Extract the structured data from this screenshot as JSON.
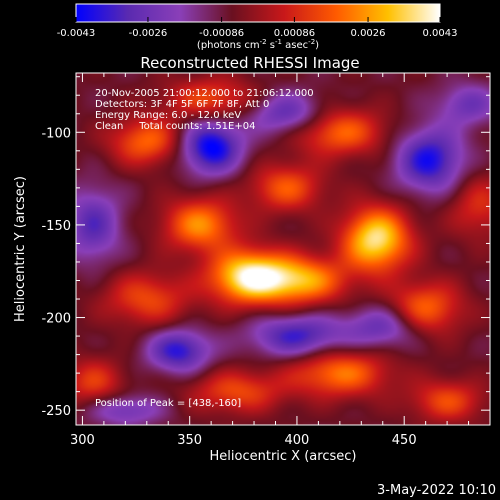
{
  "chart_data": {
    "type": "heatmap",
    "title": "Reconstructed RHESSI Image",
    "xlabel": "Heliocentric X (arcsec)",
    "ylabel": "Heliocentric Y (arcsec)",
    "xlim": [
      297,
      490
    ],
    "ylim": [
      -258,
      -68
    ],
    "x_ticks": [
      300,
      350,
      400,
      450
    ],
    "y_ticks": [
      -100,
      -150,
      -200,
      -250
    ],
    "colorbar": {
      "min": -0.0043,
      "max": 0.0043,
      "ticks": [
        "-0.0043",
        "-0.0026",
        "-0.00086",
        "0.00086",
        "0.0026",
        "0.0043"
      ],
      "tick_values": [
        -0.0043,
        -0.0026,
        -0.00086,
        0.00086,
        0.0026,
        0.0043
      ],
      "unit_label": "(photons cm-2 s-1 asec-2)",
      "colormap": [
        "#0000ff",
        "#5a2ab0",
        "#8a3fb8",
        "#6a1020",
        "#c8181a",
        "#ff5a00",
        "#ffc000",
        "#ffffff"
      ]
    },
    "annotations": [
      "20-Nov-2005 21:00:12.000 to 21:06:12.000",
      "Detectors: 3F 4F 5F 6F 7F 8F, Att 0",
      "Energy Range: 6.0 - 12.0 keV",
      "Clean     Total counts: 1.51E+04"
    ],
    "peak_label": "Position of Peak = [438,-160]",
    "peak": [
      438,
      -160
    ],
    "blobs": [
      {
        "x": 378,
        "y": -178,
        "amp": 1.0,
        "sx": 13,
        "sy": 10
      },
      {
        "x": 437,
        "y": -158,
        "amp": 0.95,
        "sx": 11,
        "sy": 12
      },
      {
        "x": 355,
        "y": -150,
        "amp": 0.65,
        "sx": 12,
        "sy": 10
      },
      {
        "x": 403,
        "y": -180,
        "amp": 0.7,
        "sx": 14,
        "sy": 9
      },
      {
        "x": 330,
        "y": -105,
        "amp": 0.55,
        "sx": 12,
        "sy": 9
      },
      {
        "x": 420,
        "y": -100,
        "amp": 0.55,
        "sx": 15,
        "sy": 9
      },
      {
        "x": 360,
        "y": -82,
        "amp": 0.45,
        "sx": 15,
        "sy": 8
      },
      {
        "x": 395,
        "y": -130,
        "amp": 0.5,
        "sx": 12,
        "sy": 9
      },
      {
        "x": 330,
        "y": -190,
        "amp": 0.45,
        "sx": 14,
        "sy": 10
      },
      {
        "x": 460,
        "y": -195,
        "amp": 0.55,
        "sx": 12,
        "sy": 10
      },
      {
        "x": 420,
        "y": -230,
        "amp": 0.6,
        "sx": 16,
        "sy": 9
      },
      {
        "x": 372,
        "y": -240,
        "amp": 0.45,
        "sx": 15,
        "sy": 8
      },
      {
        "x": 470,
        "y": -245,
        "amp": 0.45,
        "sx": 12,
        "sy": 8
      },
      {
        "x": 305,
        "y": -235,
        "amp": 0.4,
        "sx": 10,
        "sy": 9
      },
      {
        "x": 485,
        "y": -140,
        "amp": 0.35,
        "sx": 10,
        "sy": 12
      },
      {
        "x": 360,
        "y": -108,
        "amp": -0.8,
        "sx": 10,
        "sy": 10
      },
      {
        "x": 462,
        "y": -115,
        "amp": -0.7,
        "sx": 11,
        "sy": 12
      },
      {
        "x": 400,
        "y": -210,
        "amp": -0.6,
        "sx": 15,
        "sy": 8
      },
      {
        "x": 345,
        "y": -218,
        "amp": -0.65,
        "sx": 10,
        "sy": 8
      },
      {
        "x": 305,
        "y": -150,
        "amp": -0.5,
        "sx": 9,
        "sy": 14
      },
      {
        "x": 440,
        "y": -205,
        "amp": -0.45,
        "sx": 12,
        "sy": 8
      },
      {
        "x": 395,
        "y": -90,
        "amp": -0.5,
        "sx": 12,
        "sy": 8
      },
      {
        "x": 480,
        "y": -85,
        "amp": -0.4,
        "sx": 10,
        "sy": 8
      },
      {
        "x": 320,
        "y": -250,
        "amp": -0.4,
        "sx": 12,
        "sy": 6
      }
    ]
  },
  "timestamp": "3-May-2022 10:10"
}
